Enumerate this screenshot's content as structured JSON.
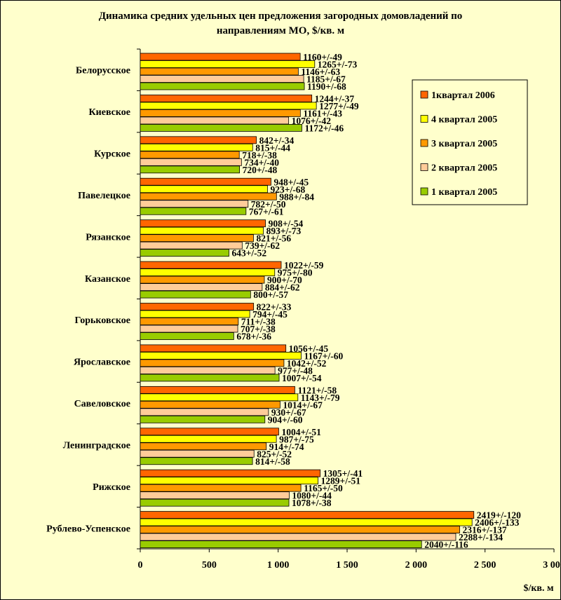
{
  "chart_data": {
    "type": "bar",
    "orientation": "horizontal",
    "title_line1": "Динамика средних удельных цен предложения загородных домовладений по",
    "title_line2": "направлениям МО, $/кв. м",
    "xlabel": "$/кв. м",
    "ylabel": "",
    "xlim": [
      0,
      3000
    ],
    "x_ticks": [
      0,
      500,
      1000,
      1500,
      2000,
      2500,
      3000
    ],
    "x_tick_labels": [
      "0",
      "500",
      "1 000",
      "1 500",
      "2 000",
      "2 500",
      "3 000"
    ],
    "grid": false,
    "legend_position": "right",
    "categories": [
      "Белорусское",
      "Киевское",
      "Курское",
      "Павелецкое",
      "Рязанское",
      "Казанское",
      "Горьковское",
      "Ярославское",
      "Савеловское",
      "Ленинградское",
      "Рижское",
      "Рублево-Успенское"
    ],
    "series": [
      {
        "name": "1квартал 2006",
        "color": "#ff6600",
        "values": [
          1160,
          1244,
          842,
          948,
          908,
          1022,
          822,
          1056,
          1121,
          1004,
          1305,
          2419
        ],
        "labels": [
          "1160+/-49",
          "1244+/-37",
          "842+/-34",
          "948+/-45",
          "908+/-54",
          "1022+/-59",
          "822+/-33",
          "1056+/-45",
          "1121+/-58",
          "1004+/-51",
          "1305+/-41",
          "2419+/-120"
        ]
      },
      {
        "name": "4 квартал 2005",
        "color": "#ffff00",
        "values": [
          1265,
          1277,
          815,
          923,
          893,
          975,
          794,
          1167,
          1143,
          987,
          1289,
          2406
        ],
        "labels": [
          "1265+/-73",
          "1277+/-49",
          "815+/-44",
          "923+/-68",
          "893+/-73",
          "975+/-80",
          "794+/-45",
          "1167+/-60",
          "1143+/-79",
          "987+/-75",
          "1289+/-51",
          "2406+/-133"
        ]
      },
      {
        "name": "3 квартал 2005",
        "color": "#ff9900",
        "values": [
          1146,
          1161,
          718,
          988,
          821,
          900,
          711,
          1042,
          1014,
          914,
          1165,
          2316
        ],
        "labels": [
          "1146+/-63",
          "1161+/-43",
          "718+/-38",
          "988+/-84",
          "821+/-56",
          "900+/-70",
          "711+/-38",
          "1042+/-52",
          "1014+/-67",
          "914+/-74",
          "1165+/-50",
          "2316+/-137"
        ]
      },
      {
        "name": "2 квартал 2005",
        "color": "#ffcc99",
        "values": [
          1185,
          1076,
          734,
          782,
          739,
          884,
          707,
          977,
          930,
          825,
          1080,
          2288
        ],
        "labels": [
          "1185+/-67",
          "1076+/-42",
          "734+/-40",
          "782+/-50",
          "739+/-62",
          "884+/-62",
          "707+/-38",
          "977+/-48",
          "930+/-67",
          "825+/-52",
          "1080+/-44",
          "2288+/-134"
        ]
      },
      {
        "name": "1 квартал 2005",
        "color": "#99cc00",
        "values": [
          1190,
          1172,
          720,
          767,
          643,
          800,
          678,
          1007,
          904,
          814,
          1078,
          2040
        ],
        "labels": [
          "1190+/-68",
          "1172+/-46",
          "720+/-48",
          "767+/-61",
          "643+/-52",
          "800+/-57",
          "678+/-36",
          "1007+/-54",
          "904+/-60",
          "814+/-58",
          "1078+/-38",
          "2040+/-116"
        ]
      }
    ]
  }
}
